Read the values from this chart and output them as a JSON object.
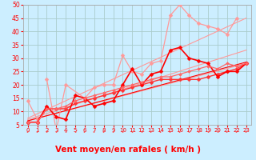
{
  "background_color": "#cceeff",
  "grid_color": "#aacccc",
  "xlim": [
    -0.5,
    23.5
  ],
  "ylim": [
    5,
    50
  ],
  "yticks": [
    5,
    10,
    15,
    20,
    25,
    30,
    35,
    40,
    45,
    50
  ],
  "xticks": [
    0,
    1,
    2,
    3,
    4,
    5,
    6,
    7,
    8,
    9,
    10,
    11,
    12,
    13,
    14,
    15,
    16,
    17,
    18,
    19,
    20,
    21,
    22,
    23
  ],
  "xlabel": "Vent moyen/en rafales ( km/h )",
  "xlabel_color": "#ff0000",
  "xlabel_fontsize": 7.5,
  "series": [
    {
      "comment": "light pink trend line 1 - lower bound diagonal",
      "x": [
        0,
        23
      ],
      "y": [
        6.5,
        28
      ],
      "color": "#ff9999",
      "marker": null,
      "markersize": 0,
      "linewidth": 0.8
    },
    {
      "comment": "light pink trend line 2 - upper bound diagonal",
      "x": [
        0,
        23
      ],
      "y": [
        7.5,
        45
      ],
      "color": "#ff9999",
      "marker": null,
      "markersize": 0,
      "linewidth": 0.8
    },
    {
      "comment": "light pink trend line 3 - mid diagonal",
      "x": [
        0,
        23
      ],
      "y": [
        7,
        33
      ],
      "color": "#ff9999",
      "marker": null,
      "markersize": 0,
      "linewidth": 0.8
    },
    {
      "comment": "light pink line with markers - upper zigzag",
      "x": [
        2,
        3,
        4,
        6,
        7,
        8,
        9,
        10,
        11,
        12,
        13,
        14,
        15,
        16,
        17,
        18,
        19,
        20,
        21,
        22
      ],
      "y": [
        22,
        3,
        20,
        15,
        19,
        20,
        20,
        31,
        25,
        24,
        28,
        29,
        46,
        50,
        46,
        43,
        42,
        41,
        39,
        45
      ],
      "color": "#ff9999",
      "marker": "D",
      "markersize": 2.5,
      "linewidth": 0.9
    },
    {
      "comment": "light pink line with markers - lower start",
      "x": [
        0,
        1
      ],
      "y": [
        14,
        7
      ],
      "color": "#ff9999",
      "marker": "D",
      "markersize": 2.5,
      "linewidth": 0.9
    },
    {
      "comment": "red line lower - straight diagonal with markers",
      "x": [
        0,
        1,
        2,
        3,
        4,
        5,
        6,
        7,
        8,
        9,
        10,
        11,
        12,
        13,
        14,
        15,
        16,
        17,
        18,
        19,
        20,
        21,
        22,
        23
      ],
      "y": [
        6,
        6,
        11,
        11,
        11,
        13,
        14,
        15,
        16,
        17,
        18,
        19,
        20,
        21,
        22,
        22,
        22,
        22,
        22,
        23,
        24,
        25,
        26,
        28
      ],
      "color": "#ff3333",
      "marker": "D",
      "markersize": 2.5,
      "linewidth": 1.0
    },
    {
      "comment": "bright red main zigzag line",
      "x": [
        0,
        1,
        2,
        3,
        4,
        5,
        6,
        7,
        8,
        9,
        10,
        11,
        12,
        13,
        14,
        15,
        16,
        17,
        18,
        19,
        20,
        21,
        22,
        23
      ],
      "y": [
        6,
        6,
        12,
        8,
        7,
        16,
        15,
        12,
        13,
        14,
        20,
        26,
        20,
        24,
        25,
        33,
        34,
        30,
        29,
        28,
        23,
        25,
        25,
        28
      ],
      "color": "#ff0000",
      "marker": "D",
      "markersize": 2.5,
      "linewidth": 1.2
    },
    {
      "comment": "medium red line with markers",
      "x": [
        0,
        1,
        2,
        3,
        4,
        5,
        6,
        7,
        8,
        9,
        10,
        11,
        12,
        13,
        14,
        15,
        16,
        17,
        18,
        19,
        20,
        21,
        22,
        23
      ],
      "y": [
        6,
        6,
        11,
        11,
        12,
        14,
        15,
        16,
        17,
        18,
        19,
        20,
        21,
        22,
        23,
        23,
        24,
        25,
        26,
        27,
        26,
        28,
        27,
        28
      ],
      "color": "#ff6666",
      "marker": "D",
      "markersize": 2,
      "linewidth": 0.9
    },
    {
      "comment": "red diagonal trend - no marker",
      "x": [
        0,
        23
      ],
      "y": [
        6.5,
        28.5
      ],
      "color": "#ff0000",
      "marker": null,
      "markersize": 0,
      "linewidth": 0.8
    }
  ],
  "arrows": [
    {
      "x": 0
    },
    {
      "x": 1
    },
    {
      "x": 2
    },
    {
      "x": 3
    },
    {
      "x": 4
    },
    {
      "x": 5
    },
    {
      "x": 6
    },
    {
      "x": 7
    },
    {
      "x": 8
    },
    {
      "x": 9
    },
    {
      "x": 10
    },
    {
      "x": 11
    },
    {
      "x": 12
    },
    {
      "x": 13
    },
    {
      "x": 14
    },
    {
      "x": 15
    },
    {
      "x": 16
    },
    {
      "x": 17
    },
    {
      "x": 18
    },
    {
      "x": 19
    },
    {
      "x": 20
    },
    {
      "x": 21
    },
    {
      "x": 22
    },
    {
      "x": 23
    }
  ]
}
